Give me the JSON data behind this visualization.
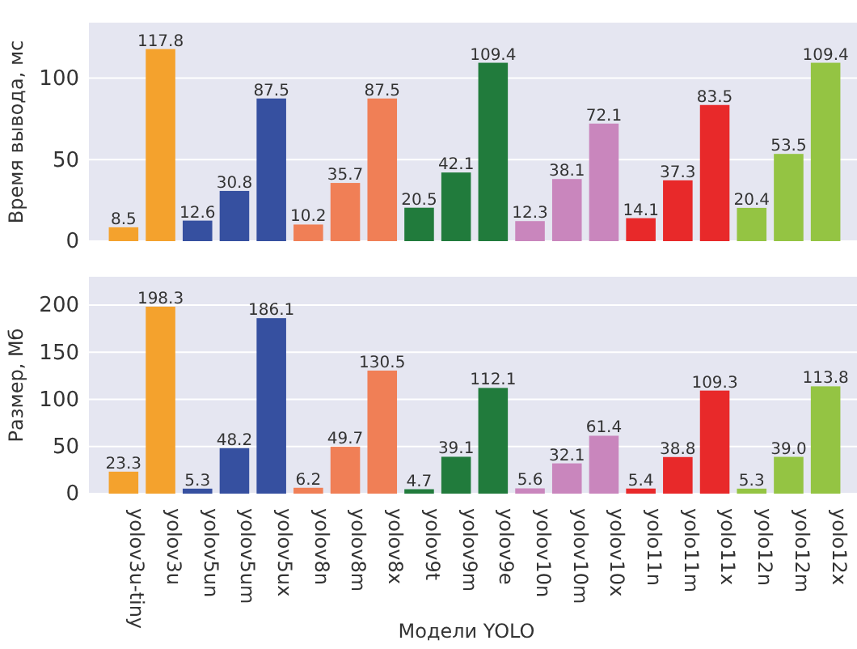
{
  "chart_data": [
    {
      "type": "bar",
      "ylabel": "Время вывода, мс",
      "categories": [
        null,
        null,
        null,
        null,
        null,
        null,
        null,
        null,
        null,
        null,
        null,
        null,
        null,
        null,
        null,
        null,
        null,
        null,
        null,
        null
      ],
      "values": [
        8.5,
        117.8,
        12.6,
        30.8,
        87.5,
        10.2,
        35.7,
        87.5,
        20.5,
        42.1,
        109.4,
        12.3,
        38.1,
        72.1,
        14.1,
        37.3,
        83.5,
        20.4,
        53.5,
        109.4
      ],
      "colors": [
        "#f4a22d",
        "#f4a22d",
        "#3650a0",
        "#3650a0",
        "#3650a0",
        "#f07f56",
        "#f07f56",
        "#f07f56",
        "#217b3c",
        "#217b3c",
        "#217b3c",
        "#c986bd",
        "#c986bd",
        "#c986bd",
        "#e8292a",
        "#e8292a",
        "#e8292a",
        "#94c443",
        "#94c443",
        "#94c443"
      ],
      "ylim": [
        0,
        134
      ],
      "yticks": [
        0,
        50,
        100
      ],
      "grid": "y",
      "data_labels": true,
      "tick_labels": "y"
    },
    {
      "type": "bar",
      "ylabel": "Размер, Мб",
      "xlabel": "Модели YOLO",
      "categories": [
        "yolov3u-tiny",
        "yolov3u",
        "yolov5un",
        "yolov5um",
        "yolov5ux",
        "yolov8n",
        "yolov8m",
        "yolov8x",
        "yolov9t",
        "yolov9m",
        "yolov9e",
        "yolov10n",
        "yolov10m",
        "yolov10x",
        "yolo11n",
        "yolo11m",
        "yolo11x",
        "yolo12n",
        "yolo12m",
        "yolo12x"
      ],
      "values": [
        23.3,
        198.3,
        5.3,
        48.2,
        186.1,
        6.2,
        49.7,
        130.5,
        4.7,
        39.1,
        112.1,
        5.6,
        32.1,
        61.4,
        5.4,
        38.8,
        109.3,
        5.3,
        39.0,
        113.8
      ],
      "value_labels": [
        "23.3",
        "198.3",
        "5.3",
        "48.2",
        "186.1",
        "6.2",
        "49.7",
        "130.5",
        "4.7",
        "39.1",
        "112.1",
        "5.6",
        "32.1",
        "61.4",
        "5.4",
        "38.8",
        "109.3",
        "5.3",
        "39.0",
        "113.8"
      ],
      "colors": [
        "#f4a22d",
        "#f4a22d",
        "#3650a0",
        "#3650a0",
        "#3650a0",
        "#f07f56",
        "#f07f56",
        "#f07f56",
        "#217b3c",
        "#217b3c",
        "#217b3c",
        "#c986bd",
        "#c986bd",
        "#c986bd",
        "#e8292a",
        "#e8292a",
        "#e8292a",
        "#94c443",
        "#94c443",
        "#94c443"
      ],
      "ylim": [
        0,
        230
      ],
      "yticks": [
        0,
        50,
        100,
        150,
        200
      ],
      "grid": "y"
    }
  ]
}
